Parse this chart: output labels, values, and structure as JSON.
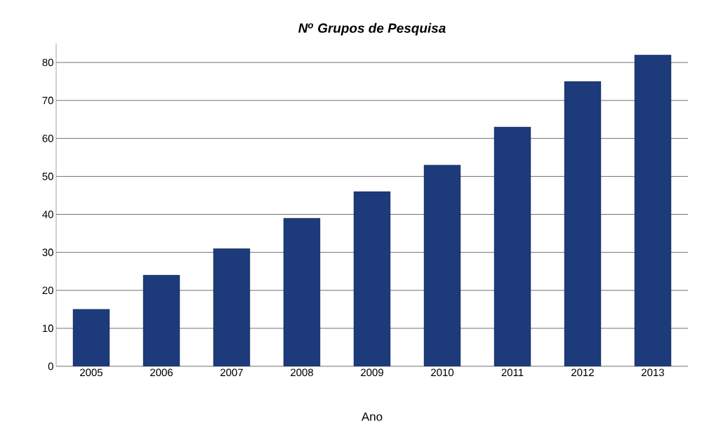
{
  "chart_data": {
    "type": "bar",
    "title": "N$^{o}$ Grupos de Pesquisa",
    "xlabel": "Ano",
    "categories": [
      "2005",
      "2006",
      "2007",
      "2008",
      "2009",
      "2010",
      "2011",
      "2012",
      "2013"
    ],
    "values": [
      15,
      24,
      31,
      39,
      46,
      53,
      63,
      75,
      82
    ],
    "color": "#1d3a7a",
    "ylim": [
      0,
      85
    ],
    "yticks": [
      0,
      10,
      20,
      30,
      40,
      50,
      60,
      70,
      80
    ],
    "grid": "y"
  }
}
